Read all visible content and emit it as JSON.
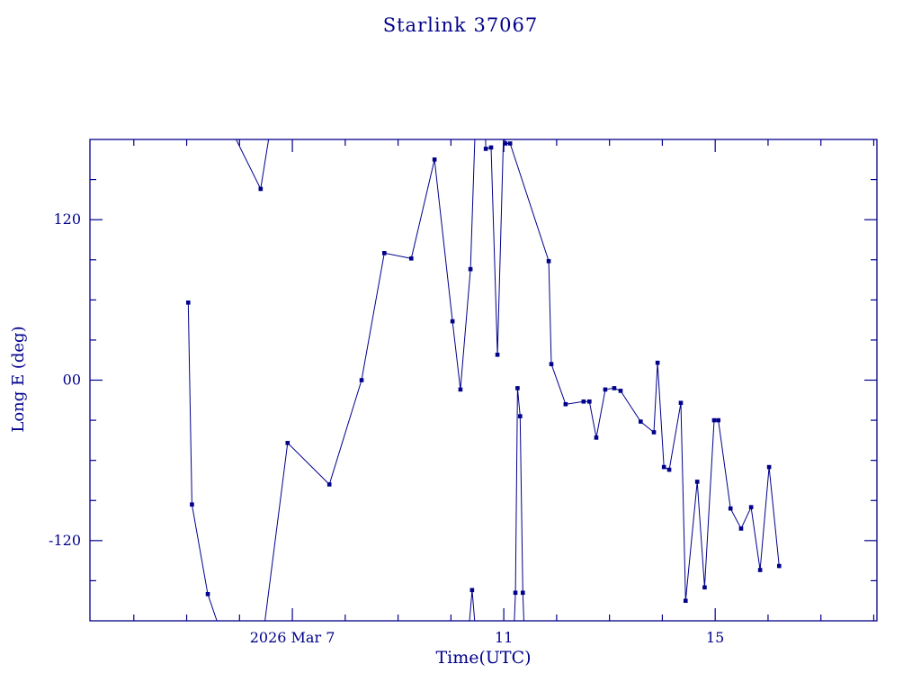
{
  "chart_data": {
    "type": "line",
    "title": "Starlink 37067",
    "xlabel": "Time(UTC)",
    "ylabel": "Long E (deg)",
    "xlim": [
      3.17,
      18.06
    ],
    "ylim": [
      -180,
      180
    ],
    "x_unit": "hours UTC",
    "x_major_ticks": [
      {
        "value": 7,
        "label": "2026 Mar  7"
      },
      {
        "value": 11,
        "label": "11"
      },
      {
        "value": 15,
        "label": "15"
      }
    ],
    "x_minor_step": 1,
    "y_major_ticks": [
      {
        "value": 120,
        "label": "120"
      },
      {
        "value": 0,
        "label": "00"
      },
      {
        "value": -120,
        "label": "-120"
      }
    ],
    "y_minor_step": 30,
    "line_color": "#00008b",
    "marker": "square",
    "grid": false,
    "legend": "none",
    "series_name": "Long E (deg)",
    "segments": [
      {
        "points": [
          [
            5.03,
            58
          ],
          [
            5.1,
            -93
          ],
          [
            5.4,
            -160
          ],
          [
            5.7,
            -195
          ]
        ]
      },
      {
        "points": [
          [
            5.81,
            190
          ],
          [
            6.4,
            143
          ],
          [
            6.59,
            190
          ]
        ]
      },
      {
        "points": [
          [
            6.45,
            -190
          ],
          [
            6.91,
            -47
          ],
          [
            7.7,
            -78
          ],
          [
            8.31,
            0
          ],
          [
            8.74,
            95
          ],
          [
            9.25,
            91
          ],
          [
            9.69,
            165
          ],
          [
            10.03,
            44
          ],
          [
            10.18,
            -7
          ],
          [
            10.37,
            83
          ],
          [
            10.46,
            190
          ]
        ]
      },
      {
        "points": [
          [
            10.33,
            -190
          ],
          [
            10.4,
            -157
          ],
          [
            10.47,
            -190
          ]
        ]
      },
      {
        "points": [
          [
            10.65,
            190
          ],
          [
            10.66,
            173
          ],
          [
            10.76,
            174
          ],
          [
            10.88,
            19
          ],
          [
            11.0,
            190
          ]
        ]
      },
      {
        "points": [
          [
            11.02,
            190
          ],
          [
            11.03,
            177
          ],
          [
            11.12,
            177
          ],
          [
            11.85,
            89
          ],
          [
            11.9,
            12
          ],
          [
            12.17,
            -18
          ],
          [
            12.51,
            -16
          ],
          [
            12.62,
            -16
          ],
          [
            12.75,
            -43
          ],
          [
            12.92,
            -7
          ],
          [
            13.09,
            -6
          ],
          [
            13.21,
            -8
          ],
          [
            13.59,
            -31
          ],
          [
            13.84,
            -39
          ],
          [
            13.91,
            13
          ],
          [
            14.03,
            -65
          ],
          [
            14.13,
            -67
          ],
          [
            14.35,
            -17
          ],
          [
            14.44,
            -165
          ],
          [
            14.66,
            -76
          ],
          [
            14.8,
            -155
          ],
          [
            14.98,
            -30
          ],
          [
            15.06,
            -30
          ],
          [
            15.29,
            -96
          ],
          [
            15.49,
            -111
          ],
          [
            15.68,
            -95
          ],
          [
            15.85,
            -142
          ],
          [
            16.02,
            -65
          ],
          [
            16.21,
            -139
          ]
        ]
      },
      {
        "points": [
          [
            11.19,
            -190
          ],
          [
            11.22,
            -159
          ],
          [
            11.26,
            -6
          ],
          [
            11.31,
            -27
          ],
          [
            11.36,
            -159
          ],
          [
            11.39,
            -190
          ]
        ]
      }
    ]
  }
}
